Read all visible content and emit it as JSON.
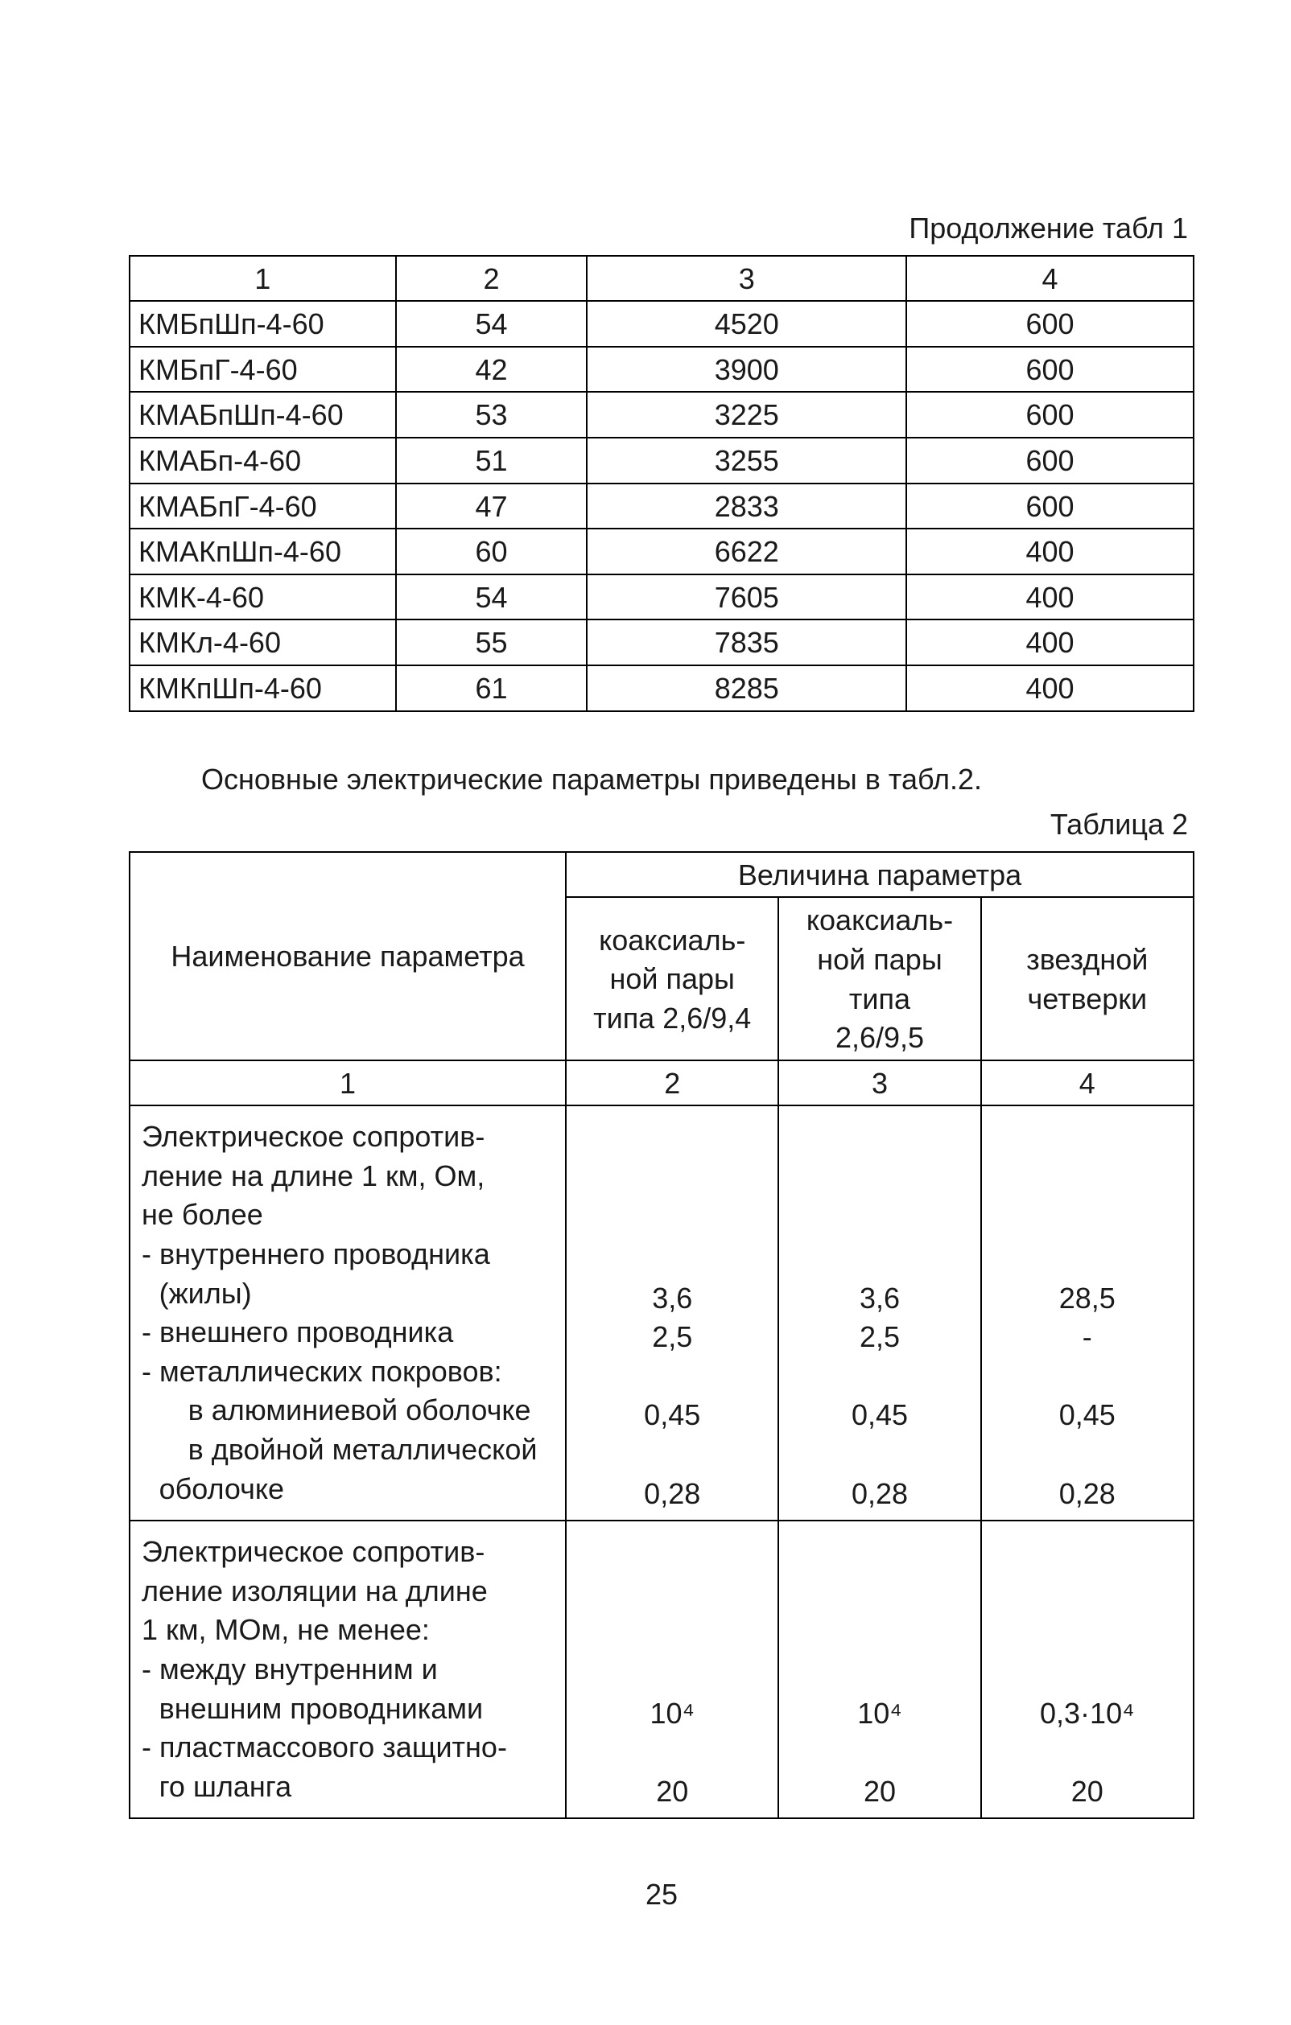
{
  "page": {
    "background_color": "#ffffff",
    "text_color": "#1a1a1a",
    "font_family": "Arial",
    "base_fontsize_pt": 27,
    "page_number": "25"
  },
  "table1": {
    "type": "table",
    "caption": "Продолжение табл 1",
    "column_widths_pct": [
      25,
      18,
      30,
      27
    ],
    "border_color": "#000000",
    "header_row": [
      "1",
      "2",
      "3",
      "4"
    ],
    "rows": [
      [
        "КМБпШп-4-60",
        "54",
        "4520",
        "600"
      ],
      [
        "КМБпГ-4-60",
        "42",
        "3900",
        "600"
      ],
      [
        "КМАБпШп-4-60",
        "53",
        "3225",
        "600"
      ],
      [
        "КМАБп-4-60",
        "51",
        "3255",
        "600"
      ],
      [
        "КМАБпГ-4-60",
        "47",
        "2833",
        "600"
      ],
      [
        "КМАКпШп-4-60",
        "60",
        "6622",
        "400"
      ],
      [
        "КМК-4-60",
        "54",
        "7605",
        "400"
      ],
      [
        "КМКл-4-60",
        "55",
        "7835",
        "400"
      ],
      [
        "КМКпШп-4-60",
        "61",
        "8285",
        "400"
      ]
    ]
  },
  "intro_text": "Основные электрические параметры приведены в табл.2.",
  "table2": {
    "type": "table",
    "caption": "Таблица 2",
    "column_widths_pct": [
      41,
      20,
      19,
      20
    ],
    "border_color": "#000000",
    "header": {
      "param_title": "Наименование параметра",
      "group_title": "Величина параметра",
      "sub_headers": [
        "коаксиаль-\nной пары\nтипа 2,6/9,4",
        "коаксиаль-\nной пары\nтипа\n2,6/9,5",
        "звездной\nчетверки"
      ],
      "number_row": [
        "1",
        "2",
        "3",
        "4"
      ]
    },
    "body_rows": [
      {
        "param_lines": [
          {
            "text": "Электрическое сопротив-",
            "indent": 0
          },
          {
            "text": "ление на длине 1 км, Ом,",
            "indent": 0
          },
          {
            "text": "не более",
            "indent": 0
          },
          {
            "text": "- внутреннего проводника",
            "indent": 0
          },
          {
            "text": "(жилы)",
            "indent": 1
          },
          {
            "text": "- внешнего проводника",
            "indent": 0
          },
          {
            "text": "- металлических покровов:",
            "indent": 0
          },
          {
            "text": "в алюминиевой оболочке",
            "indent": 2
          },
          {
            "text": "в двойной металлической",
            "indent": 2
          },
          {
            "text": "оболочке",
            "indent": 1
          }
        ],
        "value_rows": {
          "col2": [
            "",
            "",
            "",
            "",
            "3,6",
            "2,5",
            "",
            "0,45",
            "",
            "0,28"
          ],
          "col3": [
            "",
            "",
            "",
            "",
            "3,6",
            "2,5",
            "",
            "0,45",
            "",
            "0,28"
          ],
          "col4": [
            "",
            "",
            "",
            "",
            "28,5",
            "-",
            "",
            "0,45",
            "",
            "0,28"
          ]
        }
      },
      {
        "param_lines": [
          {
            "text": "Электрическое сопротив-",
            "indent": 0
          },
          {
            "text": "ление изоляции на длине",
            "indent": 0
          },
          {
            "text": "1 км, МОм, не менее:",
            "indent": 0
          },
          {
            "text": "- между внутренним и",
            "indent": 0
          },
          {
            "text": "внешним проводниками",
            "indent": 1
          },
          {
            "text": "- пластмассового защитно-",
            "indent": 0
          },
          {
            "text": "го шланга",
            "indent": 1
          }
        ],
        "value_rows": {
          "col2": [
            "",
            "",
            "",
            "",
            "10⁴",
            "",
            "20"
          ],
          "col3": [
            "",
            "",
            "",
            "",
            "10⁴",
            "",
            "20"
          ],
          "col4": [
            "",
            "",
            "",
            "",
            "0,3·10⁴",
            "",
            "20"
          ]
        }
      }
    ]
  }
}
